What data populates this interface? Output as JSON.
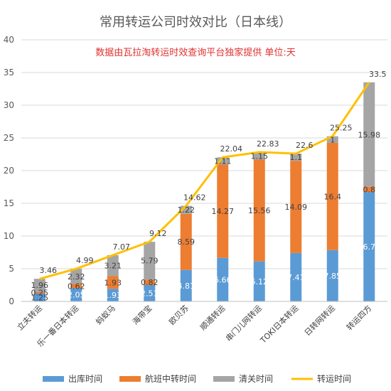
{
  "chart_data": {
    "type": "bar",
    "stacked": true,
    "title": "常用转运公司时效对比（日本线）",
    "subtitle": "数据由瓦拉淘转运时效查询平台独家提供 单位:天",
    "categories": [
      "立夫转运",
      "乐一番日本转运",
      "蚂蚁马",
      "海带宝",
      "欧贝苏",
      "顺通转运",
      "串门儿网转运",
      "TOKI日本转运",
      "日转网转运",
      "转运四方"
    ],
    "ylim": [
      0,
      40
    ],
    "yticks": [
      0,
      5,
      10,
      15,
      20,
      25,
      30,
      35,
      40
    ],
    "grid": true,
    "legend_position": "bottom",
    "series": [
      {
        "name": "出库时间",
        "color": "#5b9bd5",
        "values": [
          1.25,
          2.05,
          1.93,
          2.51,
          4.81,
          6.66,
          6.12,
          7.41,
          7.85,
          16.72
        ]
      },
      {
        "name": "航班中转时间",
        "color": "#ed7d31",
        "values": [
          0.25,
          0.62,
          1.93,
          0.82,
          8.59,
          14.27,
          15.56,
          14.09,
          16.4,
          0.8
        ]
      },
      {
        "name": "清关时间",
        "color": "#a5a5a5",
        "values": [
          1.96,
          2.32,
          3.21,
          5.79,
          1.22,
          1.11,
          1.15,
          1.1,
          1,
          15.98
        ]
      }
    ],
    "line": {
      "name": "转运时间",
      "color": "#ffc000",
      "values": [
        3.46,
        4.99,
        7.07,
        9.12,
        14.62,
        22.04,
        22.83,
        22.6,
        25.25,
        33.5
      ]
    }
  }
}
